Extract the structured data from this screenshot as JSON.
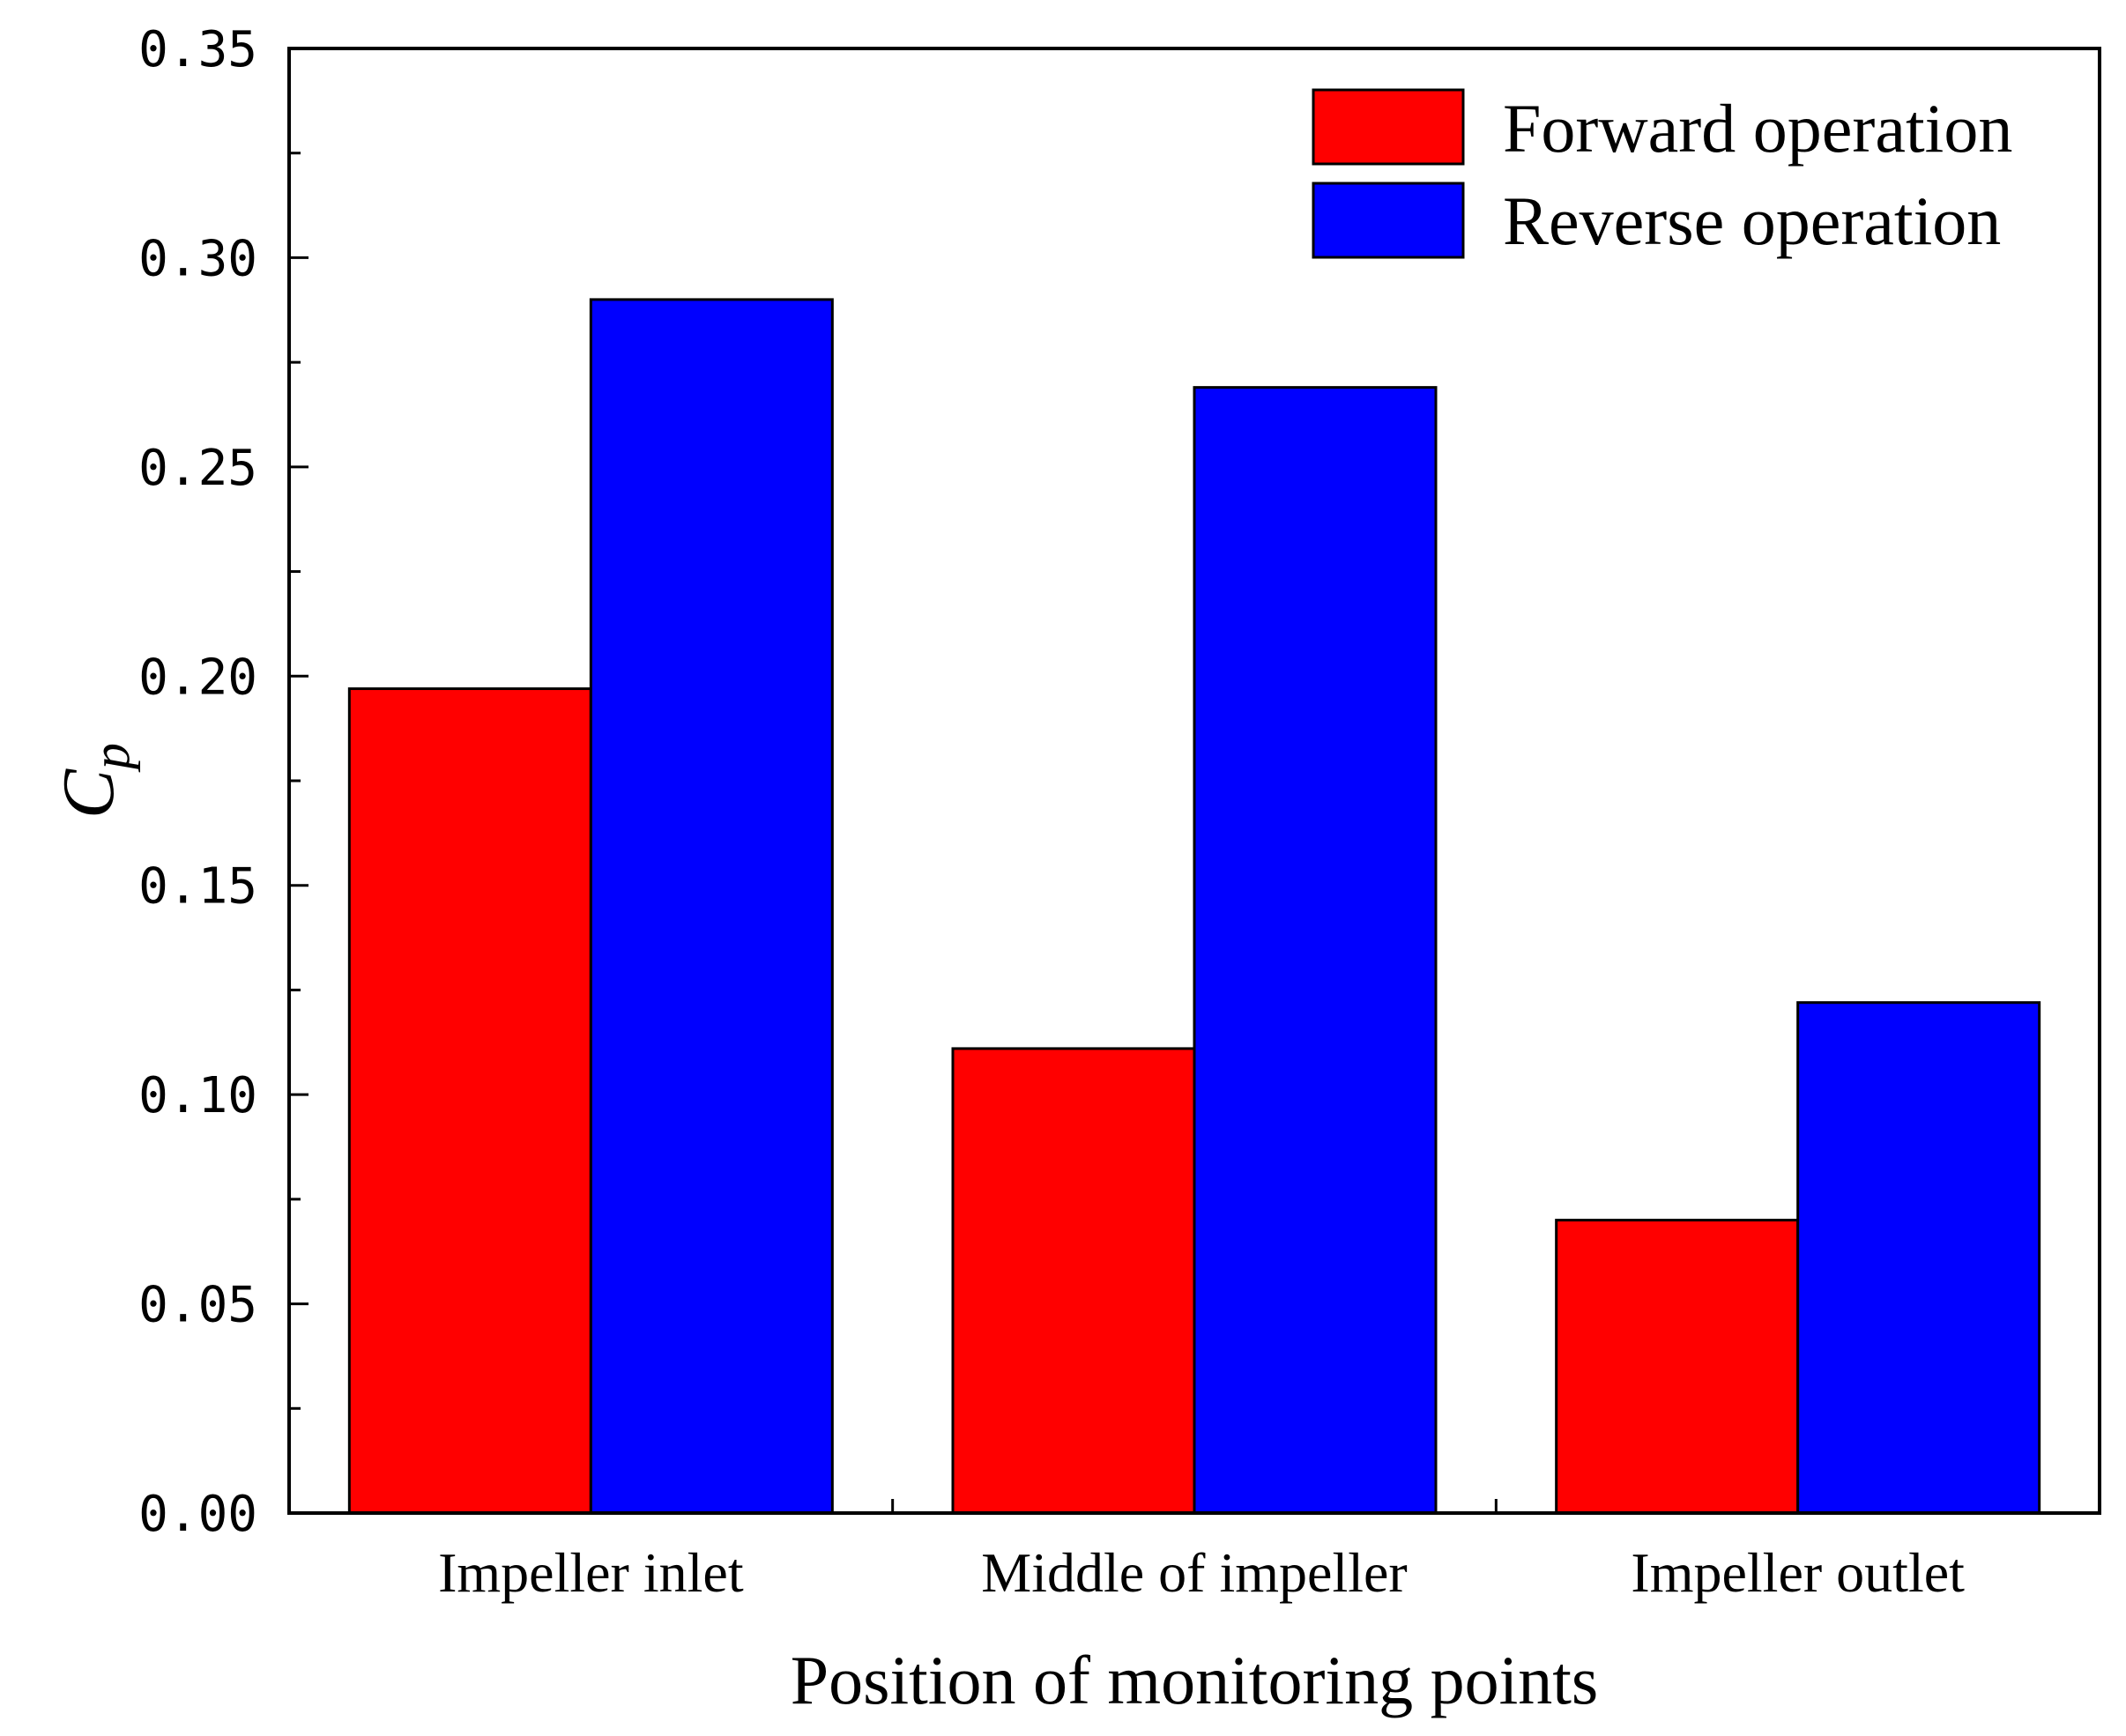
{
  "chart_data": {
    "type": "bar",
    "title": "",
    "xlabel": "Position of monitoring points",
    "ylabel": "C",
    "ylabel_subscript": "p",
    "categories": [
      "Impeller inlet",
      "Middle of impeller",
      "Impeller outlet"
    ],
    "series": [
      {
        "name": "Forward operation",
        "color": "#ff0000",
        "values": [
          0.197,
          0.111,
          0.07
        ]
      },
      {
        "name": "Reverse operation",
        "color": "#0000ff",
        "values": [
          0.29,
          0.269,
          0.122
        ]
      }
    ],
    "ylim": [
      0,
      0.35
    ],
    "yticks": [
      "0.00",
      "0.05",
      "0.10",
      "0.15",
      "0.20",
      "0.25",
      "0.30",
      "0.35"
    ],
    "grid": false,
    "legend_position": "top-right"
  }
}
